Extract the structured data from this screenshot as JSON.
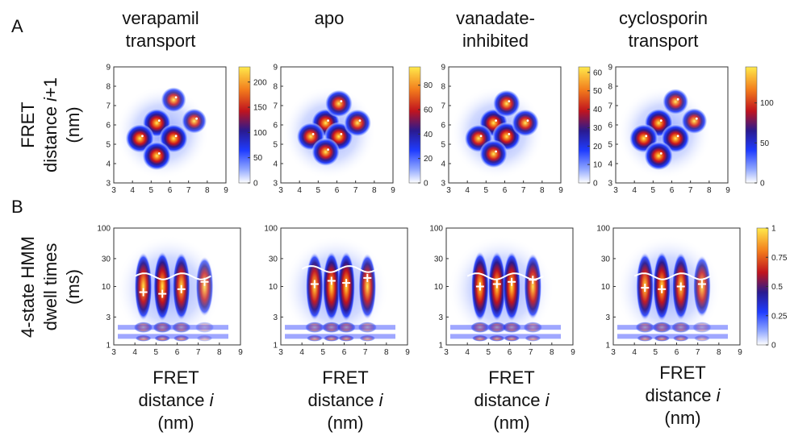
{
  "panel_labels": {
    "a": "A",
    "b": "B"
  },
  "columns": [
    {
      "title_line1": "verapamil",
      "title_line2": "transport"
    },
    {
      "title_line1": "apo",
      "title_line2": ""
    },
    {
      "title_line1": "vanadate-",
      "title_line2": "inhibited"
    },
    {
      "title_line1": "cyclosporin",
      "title_line2": "transport"
    }
  ],
  "row_a_ylabel": {
    "line1": "FRET",
    "line2_prefix": "distance ",
    "line2_italic": "i",
    "line2_suffix": "+1",
    "line3": "(nm)"
  },
  "row_b_ylabel": {
    "line1": "4-state HMM",
    "line2": "dwell times",
    "line3": "(ms)"
  },
  "xlabel": {
    "line1": "FRET",
    "line2_prefix": "distance ",
    "line2_italic": "i",
    "line3": "(nm)"
  },
  "colors": {
    "low": "#ffffff",
    "mid1": "#1f3cff",
    "mid2": "#c0141e",
    "high": "#ffe94a"
  },
  "chart_data": [
    {
      "type": "heatmap",
      "row": "A",
      "column": "verapamil transport",
      "xlim": [
        3,
        9
      ],
      "ylim": [
        3,
        9
      ],
      "x_ticks": [
        "3",
        "4",
        "5",
        "6",
        "7",
        "8",
        "9"
      ],
      "y_ticks": [
        "3",
        "4",
        "5",
        "6",
        "7",
        "8",
        "9"
      ],
      "colorbar": {
        "range": [
          0,
          230
        ],
        "ticks": [
          "0",
          "50",
          "100",
          "150",
          "200"
        ]
      },
      "peaks": [
        {
          "x": 5.3,
          "y": 6.1,
          "w": 1.0
        },
        {
          "x": 4.4,
          "y": 5.3,
          "w": 1.0
        },
        {
          "x": 6.2,
          "y": 5.3,
          "w": 1.0
        },
        {
          "x": 5.3,
          "y": 4.4,
          "w": 1.0
        },
        {
          "x": 6.2,
          "y": 7.3,
          "w": 0.5
        },
        {
          "x": 7.3,
          "y": 6.2,
          "w": 0.5
        }
      ]
    },
    {
      "type": "heatmap",
      "row": "A",
      "column": "apo",
      "xlim": [
        3,
        9
      ],
      "ylim": [
        3,
        9
      ],
      "x_ticks": [
        "3",
        "4",
        "5",
        "6",
        "7",
        "8",
        "9"
      ],
      "y_ticks": [
        "3",
        "4",
        "5",
        "6",
        "7",
        "8",
        "9"
      ],
      "colorbar": {
        "range": [
          0,
          95
        ],
        "ticks": [
          "0",
          "20",
          "40",
          "60",
          "80"
        ]
      },
      "peaks": [
        {
          "x": 5.4,
          "y": 6.1,
          "w": 1.0
        },
        {
          "x": 4.6,
          "y": 5.4,
          "w": 0.9
        },
        {
          "x": 6.1,
          "y": 5.4,
          "w": 1.0
        },
        {
          "x": 5.4,
          "y": 4.6,
          "w": 0.9
        },
        {
          "x": 6.1,
          "y": 7.1,
          "w": 0.8
        },
        {
          "x": 7.1,
          "y": 6.1,
          "w": 0.8
        }
      ]
    },
    {
      "type": "heatmap",
      "row": "A",
      "column": "vanadate-inhibited",
      "xlim": [
        3,
        9
      ],
      "ylim": [
        3,
        9
      ],
      "x_ticks": [
        "3",
        "4",
        "5",
        "6",
        "7",
        "8",
        "9"
      ],
      "y_ticks": [
        "3",
        "4",
        "5",
        "6",
        "7",
        "8",
        "9"
      ],
      "colorbar": {
        "range": [
          0,
          63
        ],
        "ticks": [
          "0",
          "10",
          "20",
          "30",
          "40",
          "50",
          "60"
        ]
      },
      "peaks": [
        {
          "x": 5.4,
          "y": 6.1,
          "w": 1.0
        },
        {
          "x": 4.6,
          "y": 5.3,
          "w": 0.9
        },
        {
          "x": 6.1,
          "y": 5.4,
          "w": 1.0
        },
        {
          "x": 5.4,
          "y": 4.5,
          "w": 0.9
        },
        {
          "x": 6.1,
          "y": 7.1,
          "w": 0.8
        },
        {
          "x": 7.1,
          "y": 6.1,
          "w": 0.8
        }
      ]
    },
    {
      "type": "heatmap",
      "row": "A",
      "column": "cyclosporin transport",
      "xlim": [
        3,
        9
      ],
      "ylim": [
        3,
        9
      ],
      "x_ticks": [
        "3",
        "4",
        "5",
        "6",
        "7",
        "8",
        "9"
      ],
      "y_ticks": [
        "3",
        "4",
        "5",
        "6",
        "7",
        "8",
        "9"
      ],
      "colorbar": {
        "range": [
          0,
          145
        ],
        "ticks": [
          "0",
          "50",
          "100"
        ]
      },
      "peaks": [
        {
          "x": 5.3,
          "y": 6.1,
          "w": 1.0
        },
        {
          "x": 4.5,
          "y": 5.3,
          "w": 1.0
        },
        {
          "x": 6.2,
          "y": 5.3,
          "w": 1.0
        },
        {
          "x": 5.3,
          "y": 4.4,
          "w": 1.0
        },
        {
          "x": 6.2,
          "y": 7.2,
          "w": 0.6
        },
        {
          "x": 7.2,
          "y": 6.2,
          "w": 0.6
        }
      ]
    },
    {
      "type": "heatmap",
      "row": "B",
      "column": "verapamil transport",
      "yscale": "log",
      "xlim": [
        3,
        9
      ],
      "ylim": [
        1,
        100
      ],
      "x_ticks": [
        "3",
        "4",
        "5",
        "6",
        "7",
        "8",
        "9"
      ],
      "y_ticks": [
        "1",
        "3",
        "10",
        "30",
        "100"
      ],
      "columns_x": [
        4.4,
        5.3,
        6.2,
        7.3
      ],
      "column_weights": [
        0.9,
        1.0,
        0.9,
        0.5
      ],
      "mean_markers": [
        {
          "x": 4.4,
          "y": 8
        },
        {
          "x": 5.3,
          "y": 7.5
        },
        {
          "x": 6.2,
          "y": 9
        },
        {
          "x": 7.3,
          "y": 12
        }
      ],
      "threshold_curve_level": 15
    },
    {
      "type": "heatmap",
      "row": "B",
      "column": "apo",
      "yscale": "log",
      "xlim": [
        3,
        9
      ],
      "ylim": [
        1,
        100
      ],
      "x_ticks": [
        "3",
        "4",
        "5",
        "6",
        "7",
        "8",
        "9"
      ],
      "y_ticks": [
        "1",
        "3",
        "10",
        "30",
        "100"
      ],
      "columns_x": [
        4.6,
        5.4,
        6.1,
        7.1
      ],
      "column_weights": [
        0.9,
        1.0,
        1.0,
        0.8
      ],
      "mean_markers": [
        {
          "x": 4.6,
          "y": 11
        },
        {
          "x": 5.4,
          "y": 12.5
        },
        {
          "x": 6.1,
          "y": 11.5
        },
        {
          "x": 7.1,
          "y": 14
        }
      ],
      "threshold_curve_level": 20
    },
    {
      "type": "heatmap",
      "row": "B",
      "column": "vanadate-inhibited",
      "yscale": "log",
      "xlim": [
        3,
        9
      ],
      "ylim": [
        1,
        100
      ],
      "x_ticks": [
        "3",
        "4",
        "5",
        "6",
        "7",
        "8",
        "9"
      ],
      "y_ticks": [
        "1",
        "3",
        "10",
        "30",
        "100"
      ],
      "columns_x": [
        4.6,
        5.4,
        6.1,
        7.1
      ],
      "column_weights": [
        1.0,
        1.0,
        1.0,
        0.8
      ],
      "mean_markers": [
        {
          "x": 4.6,
          "y": 10
        },
        {
          "x": 5.4,
          "y": 11
        },
        {
          "x": 6.1,
          "y": 12
        },
        {
          "x": 7.1,
          "y": 13
        }
      ],
      "threshold_curve_level": 15
    },
    {
      "type": "heatmap",
      "row": "B",
      "column": "cyclosporin transport",
      "yscale": "log",
      "xlim": [
        3,
        9
      ],
      "ylim": [
        1,
        100
      ],
      "x_ticks": [
        "3",
        "4",
        "5",
        "6",
        "7",
        "8",
        "9"
      ],
      "y_ticks": [
        "1",
        "3",
        "10",
        "30",
        "100"
      ],
      "columns_x": [
        4.5,
        5.3,
        6.2,
        7.2
      ],
      "column_weights": [
        0.9,
        1.0,
        0.9,
        0.6
      ],
      "mean_markers": [
        {
          "x": 4.5,
          "y": 9.5
        },
        {
          "x": 5.3,
          "y": 9
        },
        {
          "x": 6.2,
          "y": 10
        },
        {
          "x": 7.2,
          "y": 11
        }
      ],
      "threshold_curve_level": 15,
      "colorbar": {
        "range": [
          0,
          1
        ],
        "ticks": [
          "0",
          "0.25",
          "0.5",
          "0.75",
          "1"
        ]
      }
    }
  ]
}
